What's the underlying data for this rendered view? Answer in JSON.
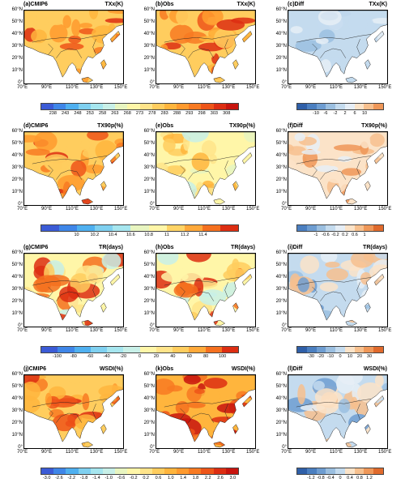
{
  "panels": [
    {
      "id": "a",
      "left": "(a)CMIP6",
      "right": "TXx(K)",
      "style": "warm"
    },
    {
      "id": "b",
      "left": "(b)Obs",
      "right": "TXx(K)",
      "style": "warm"
    },
    {
      "id": "c",
      "left": "(c)Diff",
      "right": "TXx(K)",
      "style": "diffcool"
    },
    {
      "id": "d",
      "left": "(d)CMIP6",
      "right": "TX90p(%)",
      "style": "warm"
    },
    {
      "id": "e",
      "left": "(e)Obs",
      "right": "TX90p(%)",
      "style": "mixed"
    },
    {
      "id": "f",
      "left": "(f)Diff",
      "right": "TX90p(%)",
      "style": "diffwarm"
    },
    {
      "id": "g",
      "left": "(g)CMIP6",
      "right": "TR(days)",
      "style": "trwarm"
    },
    {
      "id": "h",
      "left": "(h)Obs",
      "right": "TR(days)",
      "style": "trwarm"
    },
    {
      "id": "i",
      "left": "(i)Diff",
      "right": "TR(days)",
      "style": "diffmix"
    },
    {
      "id": "j",
      "left": "(j)CMIP6",
      "right": "WSDI(%)",
      "style": "warm"
    },
    {
      "id": "k",
      "left": "(k)Obs",
      "right": "WSDI(%)",
      "style": "hot"
    },
    {
      "id": "l",
      "left": "(l)Diff",
      "right": "WSDI(%)",
      "style": "diffmix"
    }
  ],
  "axes": {
    "lat_labels": [
      "60°N",
      "50°N",
      "40°N",
      "30°N",
      "20°N",
      "10°N",
      "0°"
    ],
    "lon_labels": [
      "70°E",
      "90°E",
      "110°E",
      "130°E",
      "150°E"
    ]
  },
  "colorbars": [
    {
      "id": "row1-main",
      "labels": [
        "238",
        "243",
        "248",
        "253",
        "258",
        "263",
        "268",
        "273",
        "278",
        "283",
        "288",
        "293",
        "298",
        "303",
        "308"
      ],
      "colors": [
        "#3b5bd6",
        "#3f86e8",
        "#4fb0f0",
        "#7fd0f0",
        "#a6e6ef",
        "#c8f0e8",
        "#e8f5c0",
        "#fff6a8",
        "#ffe48a",
        "#ffcd5e",
        "#ffb53d",
        "#ff9a2e",
        "#f87a22",
        "#ee5519",
        "#dd2e12",
        "#c8140e"
      ]
    },
    {
      "id": "row1-diff",
      "labels": [
        "-10",
        "-6",
        "-2",
        "2",
        "6",
        "10"
      ],
      "colors": [
        "#2f5fa8",
        "#4b7fc0",
        "#6e9dd1",
        "#9bbfe0",
        "#c4dbee",
        "#e6eef6",
        "#fbe3c8",
        "#f7c08e",
        "#ef9758"
      ]
    },
    {
      "id": "row2-main",
      "labels": [
        "10",
        "10.2",
        "10.4",
        "10.6",
        "10.8",
        "11",
        "11.2",
        "11.4"
      ],
      "colors": [
        "#3b5bd6",
        "#3f86e8",
        "#4fb0f0",
        "#7fd0f0",
        "#a6e6ef",
        "#e8f5c0",
        "#fff6a8",
        "#ffd466",
        "#ffa93a",
        "#f5701f",
        "#dd2e12"
      ]
    },
    {
      "id": "row2-diff",
      "labels": [
        "-1",
        "-0.6",
        "-0.2",
        "0.2",
        "0.6",
        "1"
      ],
      "colors": [
        "#4b7fc0",
        "#6e9dd1",
        "#9bbfe0",
        "#c4dbee",
        "#e6eef6",
        "#fbe3c8",
        "#f7c08e",
        "#ef9758",
        "#e06a2c"
      ]
    },
    {
      "id": "row3-main",
      "labels": [
        "-100",
        "-80",
        "-60",
        "-40",
        "-20",
        "0",
        "20",
        "40",
        "60",
        "80",
        "100"
      ],
      "colors": [
        "#3b5bd6",
        "#3f86e8",
        "#4fb0f0",
        "#7fd0f0",
        "#a6e6ef",
        "#c8f0e8",
        "#fff6a8",
        "#ffe48a",
        "#ffcd5e",
        "#ffa93a",
        "#f5701f",
        "#dd2e12"
      ]
    },
    {
      "id": "row3-diff",
      "labels": [
        "-30",
        "-20",
        "-10",
        "0",
        "10",
        "20",
        "30"
      ],
      "colors": [
        "#2f5fa8",
        "#4b7fc0",
        "#6e9dd1",
        "#9bbfe0",
        "#c4dbee",
        "#fbe3c8",
        "#f7c08e",
        "#ef9758",
        "#e06a2c"
      ]
    },
    {
      "id": "row4-main",
      "labels": [
        "-3.0",
        "-2.6",
        "-2.2",
        "-1.8",
        "-1.4",
        "-1.0",
        "-0.6",
        "-0.2",
        "0.2",
        "0.6",
        "1.0",
        "1.4",
        "1.8",
        "2.2",
        "2.6",
        "3.0"
      ],
      "colors": [
        "#3b5bd6",
        "#3f86e8",
        "#4fb0f0",
        "#7fd0f0",
        "#a6e6ef",
        "#c8f0e8",
        "#e8f5c0",
        "#fff6a8",
        "#ffe48a",
        "#ffcd5e",
        "#ffb53d",
        "#ff9a2e",
        "#f87a22",
        "#ee5519",
        "#dd2e12",
        "#c8140e"
      ]
    },
    {
      "id": "row4-diff",
      "labels": [
        "-1.2",
        "-0.8",
        "-0.4",
        "0",
        "0.4",
        "0.8",
        "1.2"
      ],
      "colors": [
        "#2f5fa8",
        "#4b7fc0",
        "#6e9dd1",
        "#9bbfe0",
        "#c4dbee",
        "#fbe3c8",
        "#f7c08e",
        "#ef9758",
        "#e06a2c"
      ]
    }
  ]
}
